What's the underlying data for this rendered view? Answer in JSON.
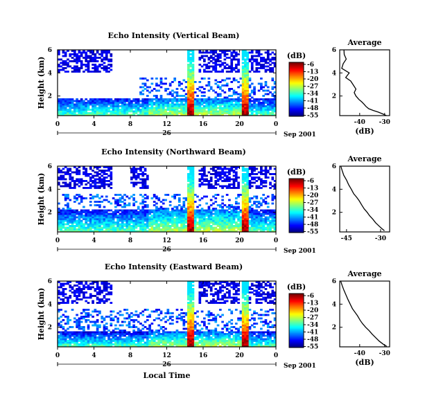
{
  "chart_data": [
    {
      "type": "heatmap",
      "title": "Echo Intensity (Vertical Beam)",
      "ylabel": "Height (km)",
      "xticks": [
        "0",
        "4",
        "8",
        "12",
        "16",
        "20",
        "0"
      ],
      "yticks": [
        "2",
        "4",
        "6"
      ],
      "xlim": [
        0,
        24
      ],
      "ylim": [
        0.3,
        6.0
      ],
      "date_label": "26",
      "date_suffix": "Sep 2001",
      "colorbar": {
        "unit": "(dB)",
        "ticks": [
          "-6",
          "-13",
          "-20",
          "-27",
          "-34",
          "-41",
          "-48",
          "-55"
        ],
        "range": [
          -56,
          -4
        ]
      },
      "features": {
        "spikes_hours": [
          14.6,
          20.6
        ],
        "base_top_km": 1.8,
        "upper_layer_km": [
          4.0,
          6.0
        ]
      }
    },
    {
      "type": "line",
      "title": "Average",
      "xlabel": "(dB)",
      "xticks": [
        "-40",
        "-30"
      ],
      "yticks": [
        "2",
        "4",
        "6"
      ],
      "xlim": [
        -48,
        -28
      ],
      "ylim": [
        0.3,
        6.0
      ],
      "series": [
        {
          "name": "",
          "x": [
            -46.3,
            -46.2,
            -45.4,
            -46.6,
            -47.2,
            -44.2,
            -45.6,
            -43.6,
            -42.7,
            -41.5,
            -42.2,
            -41.5,
            -40.3,
            -39.2,
            -38.3,
            -37.5,
            -36.4,
            -34.6,
            -32.5,
            -30.8,
            -29.3
          ],
          "y": [
            6.0,
            5.6,
            5.2,
            4.8,
            4.4,
            4.0,
            3.6,
            3.3,
            3.0,
            2.6,
            2.3,
            2.0,
            1.7,
            1.5,
            1.3,
            1.1,
            0.9,
            0.75,
            0.6,
            0.45,
            0.3
          ]
        }
      ]
    },
    {
      "type": "heatmap",
      "title": "Echo Intensity (Northward Beam)",
      "ylabel": "Height (km)",
      "xticks": [
        "0",
        "4",
        "8",
        "12",
        "16",
        "20",
        "0"
      ],
      "yticks": [
        "2",
        "4",
        "6"
      ],
      "xlim": [
        0,
        24
      ],
      "ylim": [
        0.3,
        6.0
      ],
      "date_label": "26",
      "date_suffix": "Sep 2001",
      "colorbar": {
        "unit": "(dB)",
        "ticks": [
          "-6",
          "-13",
          "-20",
          "-27",
          "-34",
          "-41",
          "-48",
          "-55"
        ],
        "range": [
          -56,
          -4
        ]
      },
      "features": {
        "spikes_hours": [
          14.6,
          20.6
        ],
        "base_top_km": 2.3,
        "upper_layer_km": [
          4.0,
          6.0
        ]
      }
    },
    {
      "type": "line",
      "title": "Average",
      "xlabel": "",
      "xticks": [
        "-45",
        "-30"
      ],
      "yticks": [
        "2",
        "4",
        "6"
      ],
      "xlim": [
        -48,
        -26
      ],
      "ylim": [
        0.3,
        6.0
      ],
      "series": [
        {
          "name": "",
          "x": [
            -47.5,
            -46.9,
            -46.2,
            -45.0,
            -44.1,
            -42.9,
            -41.8,
            -40.5,
            -39.4,
            -38.2,
            -37.2,
            -35.9,
            -34.8,
            -33.4,
            -32.2,
            -30.6,
            -29.5,
            -28.3
          ],
          "y": [
            6.0,
            5.6,
            5.2,
            4.8,
            4.4,
            4.0,
            3.6,
            3.3,
            3.0,
            2.6,
            2.3,
            2.0,
            1.7,
            1.4,
            1.1,
            0.8,
            0.6,
            0.4
          ]
        }
      ]
    },
    {
      "type": "heatmap",
      "title": "Echo Intensity (Eastward Beam)",
      "ylabel": "Height (km)",
      "xlabel": "Local Time",
      "xticks": [
        "0",
        "4",
        "8",
        "12",
        "16",
        "20",
        "0"
      ],
      "yticks": [
        "2",
        "4",
        "6"
      ],
      "xlim": [
        0,
        24
      ],
      "ylim": [
        0.3,
        6.0
      ],
      "date_label": "26",
      "date_suffix": "Sep 2001",
      "colorbar": {
        "unit": "(dB)",
        "ticks": [
          "-6",
          "-13",
          "-20",
          "-27",
          "-34",
          "-41",
          "-48",
          "-55"
        ],
        "range": [
          -56,
          -4
        ]
      },
      "features": {
        "spikes_hours": [
          14.6,
          20.6
        ],
        "base_top_km": 1.6,
        "upper_layer_km": [
          4.0,
          6.0
        ]
      }
    },
    {
      "type": "line",
      "title": "Average",
      "xlabel": "(dB)",
      "xticks": [
        "-40",
        "-30"
      ],
      "yticks": [
        "2",
        "4",
        "6"
      ],
      "xlim": [
        -48,
        -28
      ],
      "ylim": [
        0.3,
        6.0
      ],
      "series": [
        {
          "name": "",
          "x": [
            -47.6,
            -47.0,
            -46.3,
            -45.5,
            -44.7,
            -43.8,
            -42.9,
            -41.9,
            -40.9,
            -39.8,
            -38.8,
            -37.6,
            -36.2,
            -35.0,
            -33.6,
            -32.2,
            -30.4,
            -29.2
          ],
          "y": [
            6.0,
            5.6,
            5.2,
            4.8,
            4.4,
            4.0,
            3.6,
            3.3,
            3.0,
            2.6,
            2.3,
            2.0,
            1.7,
            1.4,
            1.1,
            0.8,
            0.5,
            0.35
          ]
        }
      ]
    }
  ]
}
